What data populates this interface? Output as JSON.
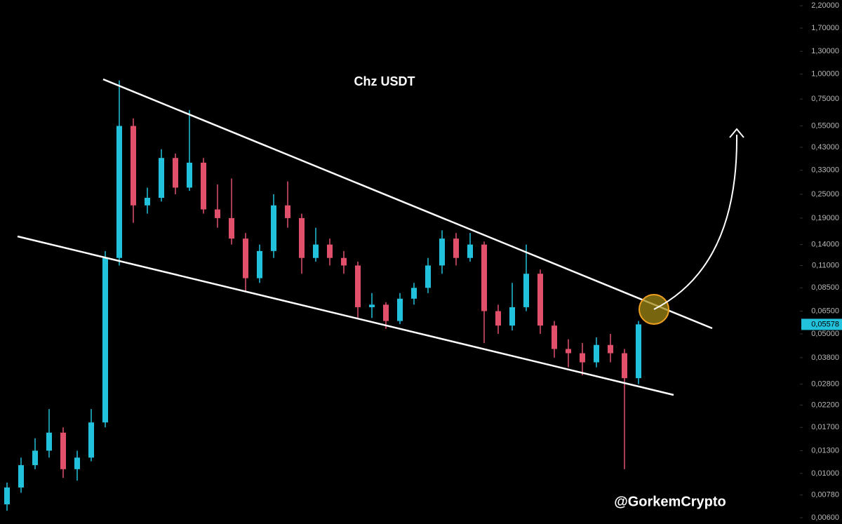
{
  "chart_data": {
    "type": "candlestick",
    "title": "Chz USDT",
    "watermark": "@GorkemCrypto",
    "log_scale": true,
    "up_color": "#22c1dc",
    "down_color": "#e0506a",
    "ylim": [
      0.00558,
      2.35
    ],
    "yticks": [
      {
        "value": 2.2,
        "label": "2,20000"
      },
      {
        "value": 1.7,
        "label": "1,70000"
      },
      {
        "value": 1.3,
        "label": "1,30000"
      },
      {
        "value": 1.0,
        "label": "1,00000"
      },
      {
        "value": 0.75,
        "label": "0,75000"
      },
      {
        "value": 0.55,
        "label": "0,55000"
      },
      {
        "value": 0.43,
        "label": "0,43000"
      },
      {
        "value": 0.33,
        "label": "0,33000"
      },
      {
        "value": 0.25,
        "label": "0,25000"
      },
      {
        "value": 0.19,
        "label": "0,19000"
      },
      {
        "value": 0.14,
        "label": "0,14000"
      },
      {
        "value": 0.11,
        "label": "0,11000"
      },
      {
        "value": 0.085,
        "label": "0,08500"
      },
      {
        "value": 0.065,
        "label": "0,06500"
      },
      {
        "value": 0.05,
        "label": "0,05000"
      },
      {
        "value": 0.038,
        "label": "0,03800"
      },
      {
        "value": 0.028,
        "label": "0,02800"
      },
      {
        "value": 0.022,
        "label": "0,02200"
      },
      {
        "value": 0.017,
        "label": "0,01700"
      },
      {
        "value": 0.013,
        "label": "0,01300"
      },
      {
        "value": 0.01,
        "label": "0,01000"
      },
      {
        "value": 0.0078,
        "label": "0,00780"
      },
      {
        "value": 0.006,
        "label": "0,00600"
      }
    ],
    "last_price": {
      "value": 0.05578,
      "label": "0,05578"
    },
    "open": [
      0.007,
      0.0085,
      0.011,
      0.013,
      0.016,
      0.0105,
      0.012,
      0.018,
      0.12,
      0.55,
      0.22,
      0.24,
      0.38,
      0.27,
      0.36,
      0.21,
      0.19,
      0.15,
      0.095,
      0.13,
      0.22,
      0.19,
      0.12,
      0.14,
      0.12,
      0.11,
      0.068,
      0.07,
      0.058,
      0.075,
      0.085,
      0.11,
      0.15,
      0.12,
      0.14,
      0.065,
      0.055,
      0.068,
      0.1,
      0.055,
      0.042,
      0.04,
      0.036,
      0.044,
      0.04,
      0.03
    ],
    "high": [
      0.009,
      0.012,
      0.015,
      0.021,
      0.017,
      0.013,
      0.021,
      0.13,
      0.93,
      0.6,
      0.27,
      0.42,
      0.4,
      0.66,
      0.38,
      0.28,
      0.3,
      0.16,
      0.14,
      0.25,
      0.29,
      0.2,
      0.17,
      0.15,
      0.13,
      0.115,
      0.08,
      0.072,
      0.08,
      0.09,
      0.12,
      0.165,
      0.16,
      0.16,
      0.145,
      0.07,
      0.09,
      0.14,
      0.105,
      0.058,
      0.047,
      0.045,
      0.048,
      0.05,
      0.042,
      0.058
    ],
    "low": [
      0.0065,
      0.008,
      0.0105,
      0.012,
      0.0095,
      0.0092,
      0.0115,
      0.017,
      0.11,
      0.18,
      0.2,
      0.23,
      0.25,
      0.26,
      0.2,
      0.17,
      0.14,
      0.082,
      0.09,
      0.12,
      0.17,
      0.1,
      0.115,
      0.11,
      0.1,
      0.06,
      0.06,
      0.053,
      0.056,
      0.07,
      0.08,
      0.1,
      0.11,
      0.115,
      0.045,
      0.05,
      0.052,
      0.065,
      0.05,
      0.038,
      0.034,
      0.031,
      0.034,
      0.036,
      0.0105,
      0.028
    ],
    "close": [
      0.0085,
      0.011,
      0.013,
      0.016,
      0.0105,
      0.012,
      0.018,
      0.12,
      0.55,
      0.22,
      0.24,
      0.38,
      0.27,
      0.36,
      0.21,
      0.19,
      0.15,
      0.095,
      0.13,
      0.22,
      0.19,
      0.12,
      0.14,
      0.12,
      0.11,
      0.068,
      0.07,
      0.058,
      0.075,
      0.085,
      0.11,
      0.15,
      0.12,
      0.14,
      0.065,
      0.055,
      0.068,
      0.1,
      0.055,
      0.042,
      0.04,
      0.036,
      0.044,
      0.04,
      0.03,
      0.05578
    ]
  }
}
